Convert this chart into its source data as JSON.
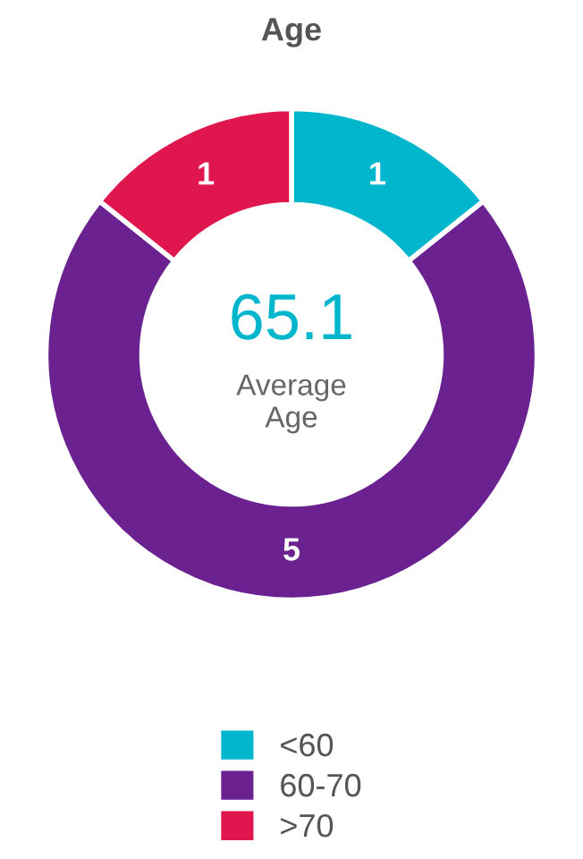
{
  "chart_data": {
    "type": "donut",
    "title": "Age",
    "categories": [
      "<60",
      "60-70",
      ">70"
    ],
    "values": [
      1,
      5,
      1
    ],
    "colors": [
      "#00b6cc",
      "#6b2190",
      "#e0164f"
    ],
    "data_labels": true,
    "annotations": [
      "65.1",
      "Average\nAge"
    ],
    "legend": "bottom"
  }
}
